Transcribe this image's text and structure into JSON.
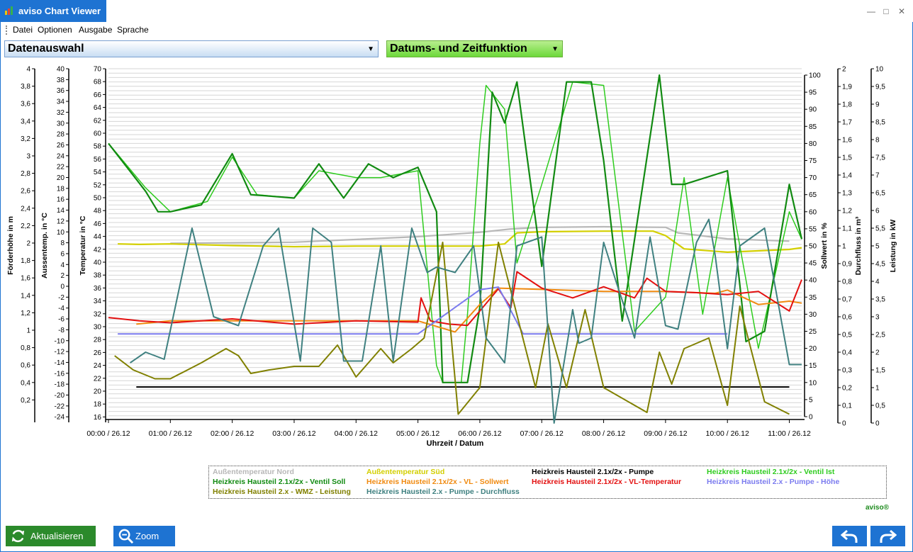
{
  "window": {
    "title": "aviso Chart Viewer",
    "controls": {
      "minimize": "—",
      "maximize": "□",
      "close": "✕"
    }
  },
  "menu": [
    "Datei",
    "Optionen",
    "Ausgabe",
    "Sprache"
  ],
  "dropdowns": {
    "data_selection": "Datenauswahl",
    "date_time": "Datums- und Zeitfunktion"
  },
  "colors": {
    "accent_blue": "#1e73d2",
    "accent_green": "#2b8a2b"
  },
  "chart_data": {
    "type": "line",
    "xlabel": "Uhrzeit / Datum",
    "x_ticks": [
      "00:00 / 26.12",
      "01:00 / 26.12",
      "02:00 / 26.12",
      "03:00 / 26.12",
      "04:00 / 26.12",
      "05:00 / 26.12",
      "06:00 / 26.12",
      "07:00 / 26.12",
      "08:00 / 26.12",
      "09:00 / 26.12",
      "10:00 / 26.12",
      "11:00 / 26.12"
    ],
    "x_range_hours": [
      0,
      11.2
    ],
    "grid": true,
    "legend_placement": "bottom",
    "axes": [
      {
        "id": "foerder",
        "label": "Förderhöhe in m",
        "min": 0,
        "max": 4,
        "ticks": [
          "4",
          "3,8",
          "3,6",
          "3,4",
          "3,2",
          "3",
          "2,8",
          "2,6",
          "2,4",
          "2,2",
          "2",
          "1,8",
          "1,6",
          "1,4",
          "1,2",
          "1",
          "0,8",
          "0,6",
          "0,4",
          "0,2"
        ]
      },
      {
        "id": "aussen",
        "label": "Aussentemp. in °C",
        "min": -24,
        "max": 40,
        "ticks": [
          "40",
          "38",
          "36",
          "34",
          "32",
          "30",
          "28",
          "26",
          "24",
          "22",
          "20",
          "18",
          "16",
          "14",
          "12",
          "10",
          "8",
          "6",
          "4",
          "2",
          "0",
          "-2",
          "-4",
          "-6",
          "-8",
          "-10",
          "-12",
          "-14",
          "-16",
          "-18",
          "-20",
          "-22",
          "-24"
        ]
      },
      {
        "id": "temp",
        "label": "Temperatur in °C",
        "min": 16,
        "max": 70,
        "ticks": [
          "70",
          "68",
          "66",
          "64",
          "62",
          "60",
          "58",
          "56",
          "54",
          "52",
          "50",
          "48",
          "46",
          "44",
          "42",
          "40",
          "38",
          "36",
          "34",
          "32",
          "30",
          "28",
          "26",
          "24",
          "22",
          "20",
          "18",
          "16"
        ]
      },
      {
        "id": "soll",
        "label": "Sollwert in %",
        "min": 0,
        "max": 100,
        "ticks": [
          "100",
          "95",
          "90",
          "85",
          "80",
          "75",
          "70",
          "65",
          "60",
          "55",
          "50",
          "45",
          "40",
          "35",
          "30",
          "25",
          "20",
          "15",
          "10",
          "5",
          "0"
        ]
      },
      {
        "id": "durch",
        "label": "Durchfluss in m³",
        "min": 0,
        "max": 2,
        "ticks": [
          "2",
          "1,9",
          "1,8",
          "1,7",
          "1,6",
          "1,5",
          "1,4",
          "1,3",
          "1,2",
          "1,1",
          "1",
          "0,9",
          "0,8",
          "0,7",
          "0,6",
          "0,5",
          "0,4",
          "0,3",
          "0,2",
          "0,1",
          "0"
        ]
      },
      {
        "id": "leistung",
        "label": "Leistung in kW",
        "min": 0,
        "max": 10,
        "ticks": [
          "10",
          "9,5",
          "9",
          "8,5",
          "8",
          "7,5",
          "7",
          "6,5",
          "6",
          "5,5",
          "5",
          "4,5",
          "4",
          "3,5",
          "3",
          "2,5",
          "2",
          "1,5",
          "1",
          "0,5",
          "0"
        ]
      }
    ],
    "series": [
      {
        "name": "Außentemperatur Nord",
        "axis": "aussen",
        "color": "#b8b8b8",
        "x": [
          1.0,
          3.0,
          5.0,
          6.0,
          6.5,
          7.0,
          8.0,
          9.0,
          9.2,
          10.0,
          11.0
        ],
        "y": [
          8.4,
          8.6,
          9.6,
          10.4,
          11.0,
          11.3,
          11.4,
          11.3,
          10.3,
          9.2,
          8.8
        ]
      },
      {
        "name": "Außentemperatur Süd",
        "axis": "aussen",
        "color": "#d3cf00",
        "x": [
          0.15,
          0.5,
          1.0,
          2.0,
          3.0,
          4.0,
          5.0,
          6.0,
          6.4,
          6.6,
          7.0,
          8.0,
          8.8,
          9.0,
          9.3,
          10.0,
          11.0,
          11.2
        ],
        "y": [
          8.3,
          8.2,
          8.3,
          8.0,
          7.8,
          7.9,
          7.9,
          7.9,
          8.3,
          10.3,
          10.5,
          10.6,
          10.6,
          9.8,
          7.4,
          6.8,
          7.3,
          7.6
        ]
      },
      {
        "name": "Heizkreis Hausteil 2.1x/2x - Pumpe",
        "axis": "foerder",
        "color": "#000000",
        "x": [
          0.45,
          11.0
        ],
        "y": [
          0.4,
          0.4
        ]
      },
      {
        "name": "Heizkreis Hausteil 2.1x/2x - Ventil Ist",
        "axis": "soll",
        "color": "#2ecc1e",
        "x": [
          0.0,
          0.6,
          1.0,
          1.6,
          2.0,
          2.4,
          3.0,
          3.4,
          4.0,
          4.4,
          5.0,
          5.3,
          5.4,
          5.7,
          5.8,
          6.0,
          6.1,
          6.4,
          6.6,
          7.0,
          7.5,
          8.0,
          8.5,
          9.0,
          9.3,
          9.6,
          10.0,
          10.5,
          11.0,
          11.2
        ],
        "y": [
          80,
          67,
          60,
          63,
          76,
          65,
          64,
          72,
          70,
          70,
          72,
          15,
          10,
          10,
          30,
          80,
          97,
          90,
          45,
          68,
          98,
          97,
          25,
          35,
          70,
          30,
          70,
          20,
          60,
          52
        ]
      },
      {
        "name": "Heizkreis Hausteil 2.1x/2x - Ventil Soll",
        "axis": "soll",
        "color": "#118a11",
        "x": [
          0.0,
          0.6,
          0.8,
          1.0,
          1.5,
          2.0,
          2.3,
          3.0,
          3.4,
          3.8,
          4.2,
          4.6,
          5.0,
          5.3,
          5.4,
          5.8,
          6.0,
          6.2,
          6.4,
          6.6,
          7.0,
          7.4,
          7.8,
          8.0,
          8.3,
          8.9,
          9.1,
          9.3,
          10.0,
          10.3,
          10.6,
          11.0,
          11.2
        ],
        "y": [
          80,
          66,
          60,
          60,
          62,
          77,
          65,
          64,
          74,
          64,
          74,
          70,
          73,
          60,
          10,
          10,
          32,
          95,
          86,
          98,
          44,
          98,
          98,
          75,
          28,
          100,
          68,
          68,
          72,
          22,
          25,
          68,
          52
        ]
      },
      {
        "name": "Heizkreis Hausteil 2.1x/2x - VL - Sollwert",
        "axis": "temp",
        "color": "#f08a10",
        "x": [
          0.45,
          1.0,
          3.0,
          5.0,
          5.6,
          6.0,
          6.3,
          7.0,
          8.0,
          9.0,
          9.8,
          10.0,
          10.5,
          11.0,
          11.2
        ],
        "y": [
          31,
          31.5,
          31.5,
          31.5,
          29.8,
          34.0,
          36.5,
          36.3,
          36.0,
          36.0,
          35.7,
          36.2,
          34.0,
          34.5,
          34.2
        ]
      },
      {
        "name": "Heizkreis Hausteil 2.1x/2x - VL-Temperatur",
        "axis": "temp",
        "color": "#e31010",
        "x": [
          0.0,
          0.5,
          1.0,
          2.0,
          3.0,
          4.0,
          5.0,
          5.05,
          5.2,
          5.5,
          5.8,
          6.0,
          6.3,
          6.5,
          6.6,
          7.0,
          7.5,
          8.0,
          8.5,
          8.7,
          9.0,
          9.5,
          10.0,
          10.5,
          11.0,
          11.2
        ],
        "y": [
          32.0,
          31.5,
          31.2,
          31.8,
          31.0,
          31.5,
          31.3,
          35.0,
          31.5,
          31.0,
          30.8,
          33.0,
          36.4,
          33.5,
          39.0,
          36.5,
          35.0,
          36.7,
          35.0,
          38.0,
          36.0,
          35.8,
          35.5,
          36.0,
          33.0,
          37.8
        ]
      },
      {
        "name": "Heizkreis Hausteil 2.x - Pumpe - Höhe",
        "axis": "foerder",
        "color": "#7b7bef",
        "x": [
          0.15,
          5.0,
          5.6,
          6.0,
          6.3,
          6.7,
          7.0,
          9.0,
          10.0
        ],
        "y": [
          1.0,
          1.0,
          1.3,
          1.5,
          1.53,
          1.0,
          1.0,
          1.0,
          1.0
        ]
      },
      {
        "name": "Heizkreis Hausteil 2.x - WMZ - Leistung",
        "axis": "leistung",
        "color": "#808000",
        "x": [
          0.1,
          0.4,
          0.75,
          1.0,
          1.5,
          1.9,
          2.1,
          2.3,
          2.6,
          3.0,
          3.4,
          3.7,
          4.0,
          4.4,
          4.6,
          4.9,
          5.1,
          5.4,
          5.65,
          6.0,
          6.3,
          6.9,
          7.1,
          7.4,
          7.7,
          8.0,
          8.7,
          8.9,
          9.1,
          9.3,
          9.7,
          10.0,
          10.2,
          10.6,
          11.0
        ],
        "y": [
          1.9,
          1.5,
          1.25,
          1.25,
          1.7,
          2.1,
          1.9,
          1.4,
          1.5,
          1.6,
          1.6,
          2.2,
          1.3,
          2.1,
          1.7,
          2.1,
          2.4,
          5.1,
          0.25,
          1.0,
          5.1,
          1.0,
          2.8,
          1.0,
          3.2,
          1.0,
          0.3,
          2.0,
          1.1,
          2.1,
          2.4,
          0.5,
          3.3,
          0.6,
          0.25
        ]
      },
      {
        "name": "Heizkreis Hausteil 2.x - Pumpe - Durchfluss",
        "axis": "durch",
        "color": "#3f8080",
        "x": [
          0.35,
          0.6,
          0.9,
          1.35,
          1.7,
          2.1,
          2.5,
          2.75,
          3.1,
          3.3,
          3.6,
          3.8,
          4.1,
          4.4,
          4.6,
          4.9,
          5.15,
          5.3,
          5.6,
          5.9,
          6.1,
          6.4,
          6.6,
          7.0,
          7.2,
          7.5,
          7.6,
          7.8,
          8.0,
          8.2,
          8.5,
          8.75,
          9.0,
          9.2,
          9.5,
          9.7,
          9.8,
          10.0,
          10.2,
          10.6,
          11.0,
          11.2
        ],
        "y": [
          0.34,
          0.4,
          0.36,
          1.1,
          0.6,
          0.55,
          1.0,
          1.1,
          0.35,
          1.1,
          1.02,
          0.35,
          0.35,
          1.0,
          0.35,
          1.1,
          0.85,
          0.88,
          0.85,
          1.0,
          0.48,
          0.34,
          1.0,
          1.05,
          0.0,
          0.64,
          0.45,
          0.48,
          1.02,
          0.8,
          0.48,
          1.05,
          0.55,
          0.53,
          1.02,
          1.15,
          0.95,
          0.42,
          1.0,
          1.1,
          0.33,
          0.33
        ]
      }
    ]
  },
  "buttons": {
    "refresh": "Aktualisieren",
    "zoom": "Zoom"
  },
  "brand": "aviso®"
}
